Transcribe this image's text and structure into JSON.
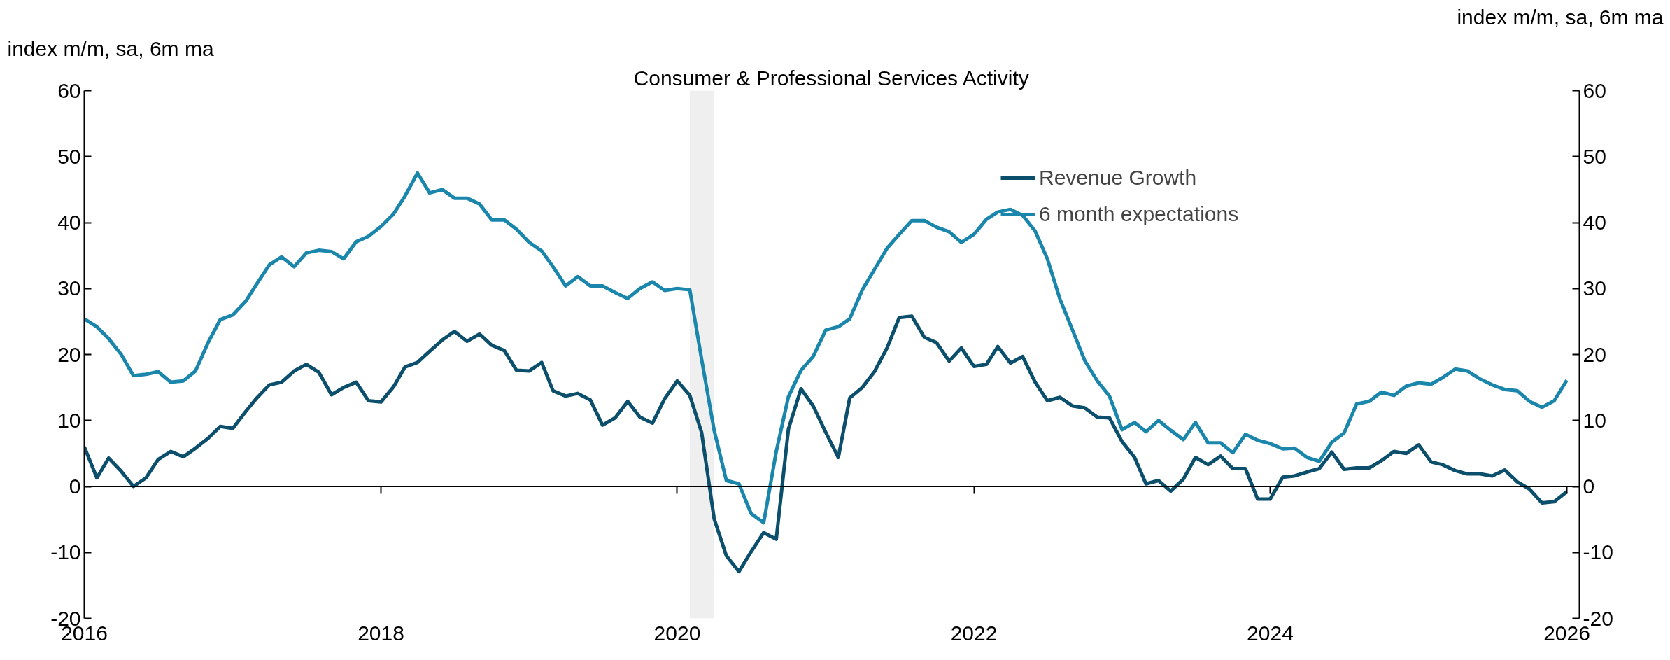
{
  "chart_data": {
    "type": "line",
    "title": "Consumer & Professional Services Activity",
    "ylabel": "index m/m, sa, 6m ma",
    "y2label": "index m/m, sa, 6m ma",
    "x": [
      "2016-01",
      "2016-02",
      "2016-03",
      "2016-04",
      "2016-05",
      "2016-06",
      "2016-07",
      "2016-08",
      "2016-09",
      "2016-10",
      "2016-11",
      "2016-12",
      "2017-01",
      "2017-02",
      "2017-03",
      "2017-04",
      "2017-05",
      "2017-06",
      "2017-07",
      "2017-08",
      "2017-09",
      "2017-10",
      "2017-11",
      "2017-12",
      "2018-01",
      "2018-02",
      "2018-03",
      "2018-04",
      "2018-05",
      "2018-06",
      "2018-07",
      "2018-08",
      "2018-09",
      "2018-10",
      "2018-11",
      "2018-12",
      "2019-01",
      "2019-02",
      "2019-03",
      "2019-04",
      "2019-05",
      "2019-06",
      "2019-07",
      "2019-08",
      "2019-09",
      "2019-10",
      "2019-11",
      "2019-12",
      "2020-01",
      "2020-02",
      "2020-03",
      "2020-04",
      "2020-05",
      "2020-06",
      "2020-07",
      "2020-08",
      "2020-09",
      "2020-10",
      "2020-11",
      "2020-12",
      "2021-01",
      "2021-02",
      "2021-03",
      "2021-04",
      "2021-05",
      "2021-06",
      "2021-07",
      "2021-08",
      "2021-09",
      "2021-10",
      "2021-11",
      "2021-12",
      "2022-01",
      "2022-02",
      "2022-03",
      "2022-04",
      "2022-05",
      "2022-06",
      "2022-07",
      "2022-08",
      "2022-09",
      "2022-10",
      "2022-11",
      "2022-12",
      "2023-01",
      "2023-02",
      "2023-03",
      "2023-04",
      "2023-05",
      "2023-06",
      "2023-07",
      "2023-08",
      "2023-09",
      "2023-10",
      "2023-11",
      "2023-12",
      "2024-01",
      "2024-02",
      "2024-03",
      "2024-04",
      "2024-05",
      "2024-06",
      "2024-07",
      "2024-08",
      "2024-09",
      "2024-10",
      "2024-11",
      "2024-12",
      "2025-01",
      "2025-02",
      "2025-03",
      "2025-04",
      "2025-05",
      "2025-06",
      "2025-07",
      "2025-08",
      "2025-09",
      "2025-10",
      "2025-11",
      "2025-12",
      "2026-01"
    ],
    "series": [
      {
        "name": "Revenue Growth",
        "color": "#0b4f6c",
        "values": [
          6.0,
          1.3,
          4.3,
          2.3,
          0.0,
          1.3,
          4.1,
          5.3,
          4.5,
          5.8,
          7.3,
          9.1,
          8.8,
          11.3,
          13.4,
          15.4,
          15.8,
          17.5,
          18.5,
          17.3,
          13.9,
          15.0,
          15.8,
          13.0,
          12.8,
          15.1,
          18.1,
          18.8,
          20.5,
          22.2,
          23.5,
          22.0,
          23.1,
          21.4,
          20.6,
          17.6,
          17.5,
          18.8,
          14.5,
          13.7,
          14.1,
          13.1,
          9.3,
          10.4,
          12.9,
          10.5,
          9.6,
          13.3,
          16.0,
          13.8,
          8.2,
          -4.9,
          -10.5,
          -12.9,
          -9.9,
          -7.0,
          -8.0,
          8.7,
          14.8,
          12.2,
          8.2,
          4.4,
          13.4,
          15.0,
          17.4,
          21.0,
          25.6,
          25.8,
          22.6,
          21.8,
          19.0,
          21.0,
          18.2,
          18.5,
          21.2,
          18.7,
          19.7,
          15.8,
          13.0,
          13.5,
          12.2,
          11.9,
          10.5,
          10.4,
          6.8,
          4.4,
          0.4,
          0.9,
          -0.7,
          1.1,
          4.4,
          3.3,
          4.6,
          2.7,
          2.7,
          -1.9,
          -1.9,
          1.4,
          1.6,
          2.2,
          2.7,
          5.2,
          2.6,
          2.8,
          2.8,
          3.9,
          5.3,
          5.0,
          6.3,
          3.7,
          3.3,
          2.4,
          1.9,
          1.9,
          1.6,
          2.5,
          0.7,
          -0.4,
          -2.5,
          -2.3,
          -0.8
        ]
      },
      {
        "name": "6 month expectations",
        "color": "#1a86ac",
        "values": [
          25.4,
          24.2,
          22.4,
          20.0,
          16.8,
          17.0,
          17.4,
          15.8,
          16.0,
          17.5,
          21.8,
          25.3,
          26.0,
          28.0,
          30.7,
          33.6,
          34.8,
          33.3,
          35.4,
          35.8,
          35.6,
          34.5,
          37.1,
          37.9,
          39.4,
          41.3,
          44.0,
          47.5,
          44.5,
          45.0,
          43.7,
          43.7,
          42.8,
          40.4,
          40.4,
          39.0,
          37.0,
          35.7,
          33.3,
          30.4,
          31.8,
          30.4,
          30.4,
          29.4,
          28.5,
          30.0,
          31.0,
          29.7,
          30.0,
          29.8,
          19.3,
          8.5,
          0.9,
          0.4,
          -4.1,
          -5.5,
          5.3,
          13.6,
          17.6,
          19.7,
          23.7,
          24.2,
          25.4,
          29.8,
          32.9,
          36.1,
          38.2,
          40.3,
          40.3,
          39.3,
          38.6,
          37.0,
          38.2,
          40.5,
          41.6,
          42.0,
          41.1,
          38.7,
          34.5,
          28.4,
          23.7,
          19.1,
          16.0,
          13.7,
          8.6,
          9.7,
          8.3,
          10.0,
          8.5,
          7.1,
          9.7,
          6.6,
          6.6,
          5.1,
          7.9,
          7.0,
          6.5,
          5.7,
          5.8,
          4.4,
          3.8,
          6.7,
          8.1,
          12.5,
          12.9,
          14.3,
          13.8,
          15.2,
          15.7,
          15.5,
          16.5,
          17.8,
          17.5,
          16.3,
          15.4,
          14.7,
          14.5,
          12.9,
          12.0,
          13.0,
          16.1
        ]
      }
    ],
    "bands": [
      {
        "axis": "x",
        "from": "2020-02",
        "to": "2020-04",
        "color": "#efefef"
      }
    ],
    "ref_lines": [
      {
        "axis": "y",
        "value": 0,
        "color": "#000000"
      }
    ],
    "xlim": [
      "2016-01",
      "2026-02"
    ],
    "xticks": [
      "2016",
      "2018",
      "2020",
      "2022",
      "2024",
      "2026"
    ],
    "ylim": [
      -20,
      60
    ],
    "yticks": [
      -20,
      -10,
      0,
      10,
      20,
      30,
      40,
      50,
      60
    ],
    "y2lim": [
      -20,
      60
    ],
    "y2ticks": [
      -20,
      -10,
      0,
      10,
      20,
      30,
      40,
      50,
      60
    ],
    "grid": false,
    "legend": "top right",
    "line_style": "solid",
    "marker": "none"
  }
}
